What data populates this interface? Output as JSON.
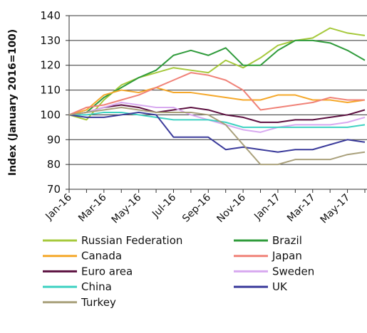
{
  "chart_data": {
    "type": "line",
    "y_label": "Index (January 2016=100)",
    "categories": [
      "Jan-16",
      null,
      "Mar-16",
      null,
      "May-16",
      null,
      "Jul-16",
      null,
      "Sep-16",
      null,
      "Nov-16",
      null,
      "Jan-17",
      null,
      "Mar-17",
      null,
      "May-17",
      null
    ],
    "ylim": [
      70,
      140
    ],
    "yticks": [
      70,
      80,
      90,
      100,
      110,
      120,
      130,
      140
    ],
    "grid": true,
    "series": [
      {
        "name": "Russian Federation",
        "color": "#a6c93c",
        "values": [
          100,
          98,
          106,
          112,
          115,
          117,
          119,
          118,
          117,
          122,
          119,
          123,
          128,
          130,
          131,
          135,
          133,
          132
        ]
      },
      {
        "name": "Brazil",
        "color": "#2f9b3b",
        "values": [
          100,
          101,
          107,
          111,
          115,
          118,
          124,
          126,
          124,
          127,
          120,
          120,
          126,
          130,
          130,
          129,
          126,
          122
        ]
      },
      {
        "name": "Canada",
        "color": "#f5a82a",
        "values": [
          100,
          102,
          108,
          110,
          109,
          111,
          109,
          109,
          108,
          107,
          106,
          106,
          108,
          108,
          106,
          106,
          105,
          106
        ]
      },
      {
        "name": "Japan",
        "color": "#f08278",
        "values": [
          100,
          103,
          104,
          106,
          108,
          111,
          114,
          117,
          116,
          114,
          110,
          102,
          103,
          104,
          105,
          107,
          106,
          106
        ]
      },
      {
        "name": "Euro area",
        "color": "#5c1040",
        "values": [
          100,
          101,
          103,
          104,
          103,
          101,
          102,
          103,
          102,
          100,
          99,
          97,
          97,
          98,
          98,
          99,
          100,
          102
        ]
      },
      {
        "name": "Sweden",
        "color": "#d8a9f0",
        "values": [
          100,
          101,
          103,
          105,
          104,
          103,
          103,
          100,
          98,
          96,
          94,
          93,
          95,
          96,
          96,
          96,
          97,
          99
        ]
      },
      {
        "name": "China",
        "color": "#3fd2c2",
        "values": [
          100,
          100,
          101,
          101,
          100,
          99,
          98,
          98,
          98,
          97,
          95,
          95,
          95,
          95,
          95,
          95,
          95,
          96
        ]
      },
      {
        "name": "UK",
        "color": "#3b3b9b",
        "values": [
          100,
          99,
          99,
          100,
          101,
          100,
          91,
          91,
          91,
          86,
          87,
          86,
          85,
          86,
          86,
          88,
          90,
          89
        ]
      },
      {
        "name": "Turkey",
        "color": "#a9a07b",
        "values": [
          100,
          101,
          102,
          103,
          102,
          101,
          101,
          101,
          100,
          96,
          88,
          80,
          80,
          82,
          82,
          82,
          84,
          85
        ]
      }
    ]
  }
}
